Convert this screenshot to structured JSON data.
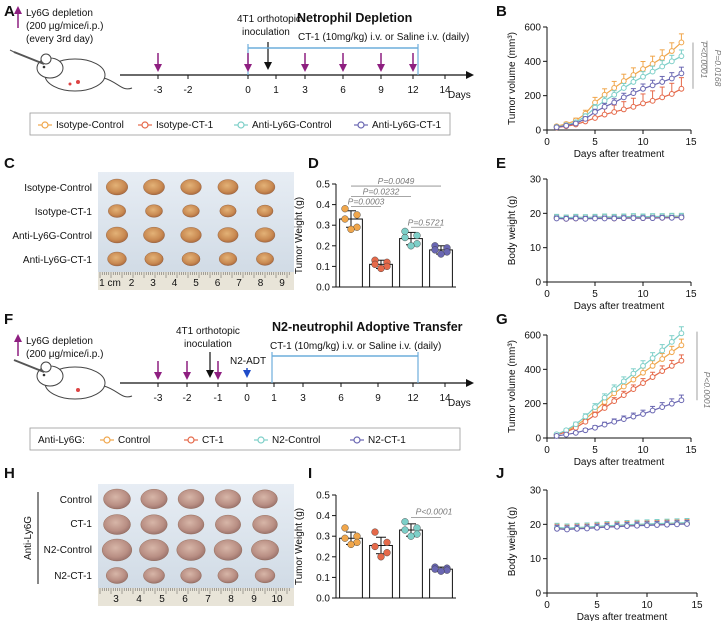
{
  "colors": {
    "orange": "#F0A64B",
    "red": "#E5694A",
    "cyan": "#7DCFC8",
    "purple": "#6A67B2",
    "magenta": "#8E1F80",
    "blue": "#1F4CC9",
    "timeline_bar": "#6DAEDB"
  },
  "panel_labels": {
    "A": "A",
    "B": "B",
    "C": "C",
    "D": "D",
    "E": "E",
    "F": "F",
    "G": "G",
    "H": "H",
    "I": "I",
    "J": "J"
  },
  "panelA": {
    "depletion": [
      "Ly6G depletion",
      "(200 μg/mice/i.p.)",
      "(every 3rd day)"
    ],
    "inoculation": [
      "4T1 orthotopic",
      "inoculation"
    ],
    "title": "Netrophil Depletion",
    "treatment": "CT-1 (10mg/kg) i.v.  or Saline i.v. (daily)",
    "ticks": [
      "-3",
      "-2",
      "0",
      "1",
      "3",
      "6",
      "9",
      "12",
      "14"
    ],
    "days_label": "Days",
    "legend": [
      "Isotype-Control",
      "Isotype-CT-1",
      "Anti-Ly6G-Control",
      "Anti-Ly6G-CT-1"
    ]
  },
  "panelF": {
    "depletion": [
      "Ly6G depletion",
      "(200 μg/mice/i.p.)"
    ],
    "inoculation": [
      "4T1 orthotopic",
      "inoculation"
    ],
    "adt": "N2-ADT",
    "title": "N2-neutrophil Adoptive Transfer",
    "treatment": "CT-1 (10mg/kg) i.v.  or Saline i.v. (daily)",
    "ticks": [
      "-3",
      "-2",
      "-1",
      "0",
      "1",
      "3",
      "6",
      "9",
      "12",
      "14"
    ],
    "days_label": "Days",
    "legend_prefix": "Anti-Ly6G:",
    "legend": [
      "Control",
      "CT-1",
      "N2-Control",
      "N2-CT-1"
    ]
  },
  "panelC": {
    "rows": [
      "Isotype-Control",
      "Isotype-CT-1",
      "Anti-Ly6G-Control",
      "Anti-Ly6G-CT-1"
    ],
    "ruler": [
      "1 cm",
      "2",
      "3",
      "4",
      "5",
      "6",
      "7",
      "8",
      "9"
    ]
  },
  "panelH": {
    "group": "Anti-Ly6G",
    "rows": [
      "Control",
      "CT-1",
      "N2-Control",
      "N2-CT-1"
    ],
    "ruler": [
      "3",
      "4",
      "5",
      "6",
      "7",
      "8",
      "9",
      "10"
    ]
  },
  "chart_data": [
    {
      "id": "B",
      "type": "line",
      "xlabel": "Days after treatment",
      "ylabel": "Tumor volume (mm³)",
      "xlim": [
        0,
        15
      ],
      "ylim": [
        0,
        600
      ],
      "xticks": [
        0,
        5,
        10,
        15
      ],
      "yticks": [
        0,
        200,
        400,
        600
      ],
      "x": [
        1,
        2,
        3,
        4,
        5,
        6,
        7,
        8,
        9,
        10,
        11,
        12,
        13,
        14
      ],
      "series": [
        {
          "name": "Isotype-Control",
          "color": "#F0A64B",
          "values": [
            22,
            35,
            55,
            95,
            160,
            205,
            245,
            285,
            320,
            355,
            385,
            420,
            460,
            510
          ],
          "err": [
            8,
            10,
            14,
            20,
            30,
            35,
            38,
            40,
            42,
            44,
            45,
            47,
            48,
            50
          ]
        },
        {
          "name": "Isotype-CT-1",
          "color": "#E5694A",
          "values": [
            15,
            22,
            32,
            50,
            70,
            90,
            105,
            120,
            135,
            155,
            170,
            190,
            210,
            240
          ],
          "err": [
            6,
            8,
            12,
            20,
            28,
            35,
            40,
            45,
            50,
            55,
            58,
            60,
            62,
            65
          ]
        },
        {
          "name": "Anti-Ly6G-Control",
          "color": "#7DCFC8",
          "values": [
            18,
            28,
            45,
            80,
            130,
            170,
            205,
            245,
            280,
            310,
            340,
            370,
            400,
            430
          ],
          "err": [
            6,
            8,
            10,
            14,
            18,
            22,
            24,
            26,
            28,
            30,
            32,
            34,
            35,
            36
          ]
        },
        {
          "name": "Anti-Ly6G-CT-1",
          "color": "#6A67B2",
          "values": [
            16,
            25,
            38,
            65,
            105,
            135,
            160,
            190,
            215,
            240,
            260,
            280,
            300,
            330
          ],
          "err": [
            5,
            7,
            9,
            12,
            16,
            20,
            22,
            24,
            26,
            28,
            30,
            32,
            34,
            36
          ]
        }
      ],
      "annotations": [
        "P<0.0001",
        "P=0.0168"
      ]
    },
    {
      "id": "D",
      "type": "bar",
      "ylabel": "Tumor Weight (g)",
      "ylim": [
        0,
        0.5
      ],
      "yticks": [
        0.0,
        0.1,
        0.2,
        0.3,
        0.4,
        0.5
      ],
      "categories": [
        "Isotype-Control",
        "Isotype-CT-1",
        "Anti-Ly6G-Control",
        "Anti-Ly6G-CT-1"
      ],
      "colors": [
        "#F0A64B",
        "#E5694A",
        "#7DCFC8",
        "#6A67B2"
      ],
      "values": [
        0.33,
        0.11,
        0.235,
        0.18
      ],
      "err": [
        0.04,
        0.02,
        0.03,
        0.02
      ],
      "points": [
        [
          0.38,
          0.35,
          0.33,
          0.29,
          0.28
        ],
        [
          0.13,
          0.12,
          0.11,
          0.1,
          0.09
        ],
        [
          0.27,
          0.25,
          0.24,
          0.21,
          0.2
        ],
        [
          0.2,
          0.19,
          0.18,
          0.17,
          0.16
        ]
      ],
      "annotations": [
        "P=0.0049",
        "P=0.0232",
        "P=0.0003",
        "P=0.5721"
      ]
    },
    {
      "id": "E",
      "type": "line",
      "xlabel": "Days after treatment",
      "ylabel": "Body weight (g)",
      "xlim": [
        0,
        15
      ],
      "ylim": [
        0,
        30
      ],
      "xticks": [
        0,
        5,
        10,
        15
      ],
      "yticks": [
        0,
        10,
        20,
        30
      ],
      "x": [
        1,
        2,
        3,
        4,
        5,
        6,
        7,
        8,
        9,
        10,
        11,
        12,
        13,
        14
      ],
      "series": [
        {
          "name": "Isotype-Control",
          "color": "#F0A64B",
          "values": [
            18.8,
            18.6,
            18.8,
            18.7,
            18.8,
            18.9,
            18.8,
            18.9,
            19.0,
            18.9,
            19.0,
            19.0,
            19.1,
            19.1
          ],
          "err": [
            0.8,
            0.8,
            0.8,
            0.8,
            0.8,
            0.8,
            0.8,
            0.8,
            0.8,
            0.8,
            0.8,
            0.8,
            0.8,
            0.8
          ]
        },
        {
          "name": "Isotype-CT-1",
          "color": "#E5694A",
          "values": [
            18.6,
            18.4,
            18.5,
            18.5,
            18.6,
            18.6,
            18.5,
            18.6,
            18.7,
            18.6,
            18.7,
            18.7,
            18.8,
            18.8
          ],
          "err": [
            0.7,
            0.7,
            0.7,
            0.7,
            0.7,
            0.7,
            0.7,
            0.7,
            0.7,
            0.7,
            0.7,
            0.7,
            0.7,
            0.7
          ]
        },
        {
          "name": "Anti-Ly6G-Control",
          "color": "#7DCFC8",
          "values": [
            18.9,
            18.7,
            18.9,
            18.8,
            18.9,
            19.0,
            18.9,
            19.0,
            19.1,
            19.0,
            19.1,
            19.1,
            19.2,
            19.2
          ],
          "err": [
            0.8,
            0.8,
            0.8,
            0.8,
            0.8,
            0.8,
            0.8,
            0.8,
            0.8,
            0.8,
            0.8,
            0.8,
            0.8,
            0.8
          ]
        },
        {
          "name": "Anti-Ly6G-CT-1",
          "color": "#6A67B2",
          "values": [
            18.5,
            18.4,
            18.5,
            18.4,
            18.5,
            18.5,
            18.5,
            18.6,
            18.6,
            18.6,
            18.6,
            18.7,
            18.7,
            18.8
          ],
          "err": [
            0.7,
            0.7,
            0.7,
            0.7,
            0.7,
            0.7,
            0.7,
            0.7,
            0.7,
            0.7,
            0.7,
            0.7,
            0.7,
            0.7
          ]
        }
      ]
    },
    {
      "id": "G",
      "type": "line",
      "xlabel": "Days after treatment",
      "ylabel": "Tumor volume (mm³)",
      "xlim": [
        0,
        15
      ],
      "ylim": [
        0,
        600
      ],
      "xticks": [
        0,
        5,
        10,
        15
      ],
      "yticks": [
        0,
        200,
        400,
        600
      ],
      "x": [
        1,
        2,
        3,
        4,
        5,
        6,
        7,
        8,
        9,
        10,
        11,
        12,
        13,
        14
      ],
      "series": [
        {
          "name": "Control",
          "color": "#F0A64B",
          "values": [
            20,
            40,
            70,
            110,
            160,
            210,
            260,
            300,
            340,
            380,
            420,
            460,
            500,
            540
          ],
          "err": [
            6,
            8,
            10,
            14,
            18,
            20,
            22,
            24,
            26,
            28,
            30,
            32,
            34,
            36
          ]
        },
        {
          "name": "CT-1",
          "color": "#E5694A",
          "values": [
            18,
            35,
            60,
            95,
            135,
            175,
            215,
            250,
            285,
            320,
            355,
            390,
            420,
            450
          ],
          "err": [
            6,
            8,
            10,
            12,
            16,
            18,
            20,
            22,
            24,
            26,
            28,
            30,
            32,
            34
          ]
        },
        {
          "name": "N2-Control",
          "color": "#7DCFC8",
          "values": [
            22,
            45,
            80,
            125,
            180,
            235,
            285,
            330,
            375,
            420,
            465,
            510,
            560,
            610
          ],
          "err": [
            6,
            8,
            12,
            16,
            20,
            22,
            24,
            26,
            28,
            30,
            32,
            34,
            36,
            38
          ]
        },
        {
          "name": "N2-CT-1",
          "color": "#6A67B2",
          "values": [
            12,
            20,
            30,
            45,
            60,
            78,
            95,
            110,
            125,
            140,
            160,
            180,
            200,
            220
          ],
          "err": [
            5,
            6,
            8,
            10,
            12,
            14,
            16,
            18,
            20,
            22,
            24,
            26,
            28,
            30
          ]
        }
      ],
      "annotations": [
        "P<0.0001"
      ]
    },
    {
      "id": "I",
      "type": "bar",
      "ylabel": "Tumor Weight (g)",
      "ylim": [
        0,
        0.5
      ],
      "yticks": [
        0.0,
        0.1,
        0.2,
        0.3,
        0.4,
        0.5
      ],
      "categories": [
        "Control",
        "CT-1",
        "N2-Control",
        "N2-CT-1"
      ],
      "colors": [
        "#F0A64B",
        "#E5694A",
        "#7DCFC8",
        "#6A67B2"
      ],
      "values": [
        0.29,
        0.255,
        0.33,
        0.14
      ],
      "err": [
        0.03,
        0.04,
        0.03,
        0.01
      ],
      "points": [
        [
          0.34,
          0.3,
          0.29,
          0.27,
          0.26
        ],
        [
          0.32,
          0.27,
          0.25,
          0.22,
          0.2
        ],
        [
          0.37,
          0.34,
          0.33,
          0.31,
          0.3
        ],
        [
          0.15,
          0.145,
          0.14,
          0.135,
          0.13
        ]
      ],
      "annotations": [
        "P<0.0001"
      ]
    },
    {
      "id": "J",
      "type": "line",
      "xlabel": "Days after treatment",
      "ylabel": "Body weight (g)",
      "xlim": [
        0,
        15
      ],
      "ylim": [
        0,
        30
      ],
      "xticks": [
        0,
        5,
        10,
        15
      ],
      "yticks": [
        0,
        10,
        20,
        30
      ],
      "x": [
        1,
        2,
        3,
        4,
        5,
        6,
        7,
        8,
        9,
        10,
        11,
        12,
        13,
        14
      ],
      "series": [
        {
          "name": "Control",
          "color": "#F0A64B",
          "values": [
            19.0,
            18.8,
            19.0,
            19.1,
            19.3,
            19.5,
            19.6,
            19.8,
            19.9,
            20.0,
            20.1,
            20.2,
            20.3,
            20.4
          ],
          "err": [
            1.2,
            1.2,
            1.2,
            1.2,
            1.2,
            1.2,
            1.2,
            1.2,
            1.2,
            1.2,
            1.2,
            1.2,
            1.2,
            1.2
          ]
        },
        {
          "name": "CT-1",
          "color": "#E5694A",
          "values": [
            18.8,
            18.6,
            18.8,
            18.9,
            19.1,
            19.3,
            19.4,
            19.6,
            19.7,
            19.8,
            19.9,
            20.0,
            20.1,
            20.2
          ],
          "err": [
            1.1,
            1.1,
            1.1,
            1.1,
            1.1,
            1.1,
            1.1,
            1.1,
            1.1,
            1.1,
            1.1,
            1.1,
            1.1,
            1.1
          ]
        },
        {
          "name": "N2-Control",
          "color": "#7DCFC8",
          "values": [
            19.1,
            18.9,
            19.1,
            19.2,
            19.4,
            19.6,
            19.7,
            19.9,
            20.0,
            20.1,
            20.2,
            20.3,
            20.4,
            20.5
          ],
          "err": [
            1.2,
            1.2,
            1.2,
            1.2,
            1.2,
            1.2,
            1.2,
            1.2,
            1.2,
            1.2,
            1.2,
            1.2,
            1.2,
            1.2
          ]
        },
        {
          "name": "N2-CT-1",
          "color": "#6A67B2",
          "values": [
            18.7,
            18.5,
            18.7,
            18.8,
            19.0,
            19.2,
            19.3,
            19.5,
            19.6,
            19.7,
            19.8,
            19.9,
            20.0,
            20.1
          ],
          "err": [
            1.0,
            1.0,
            1.0,
            1.0,
            1.0,
            1.0,
            1.0,
            1.0,
            1.0,
            1.0,
            1.0,
            1.0,
            1.0,
            1.0
          ]
        }
      ]
    }
  ]
}
